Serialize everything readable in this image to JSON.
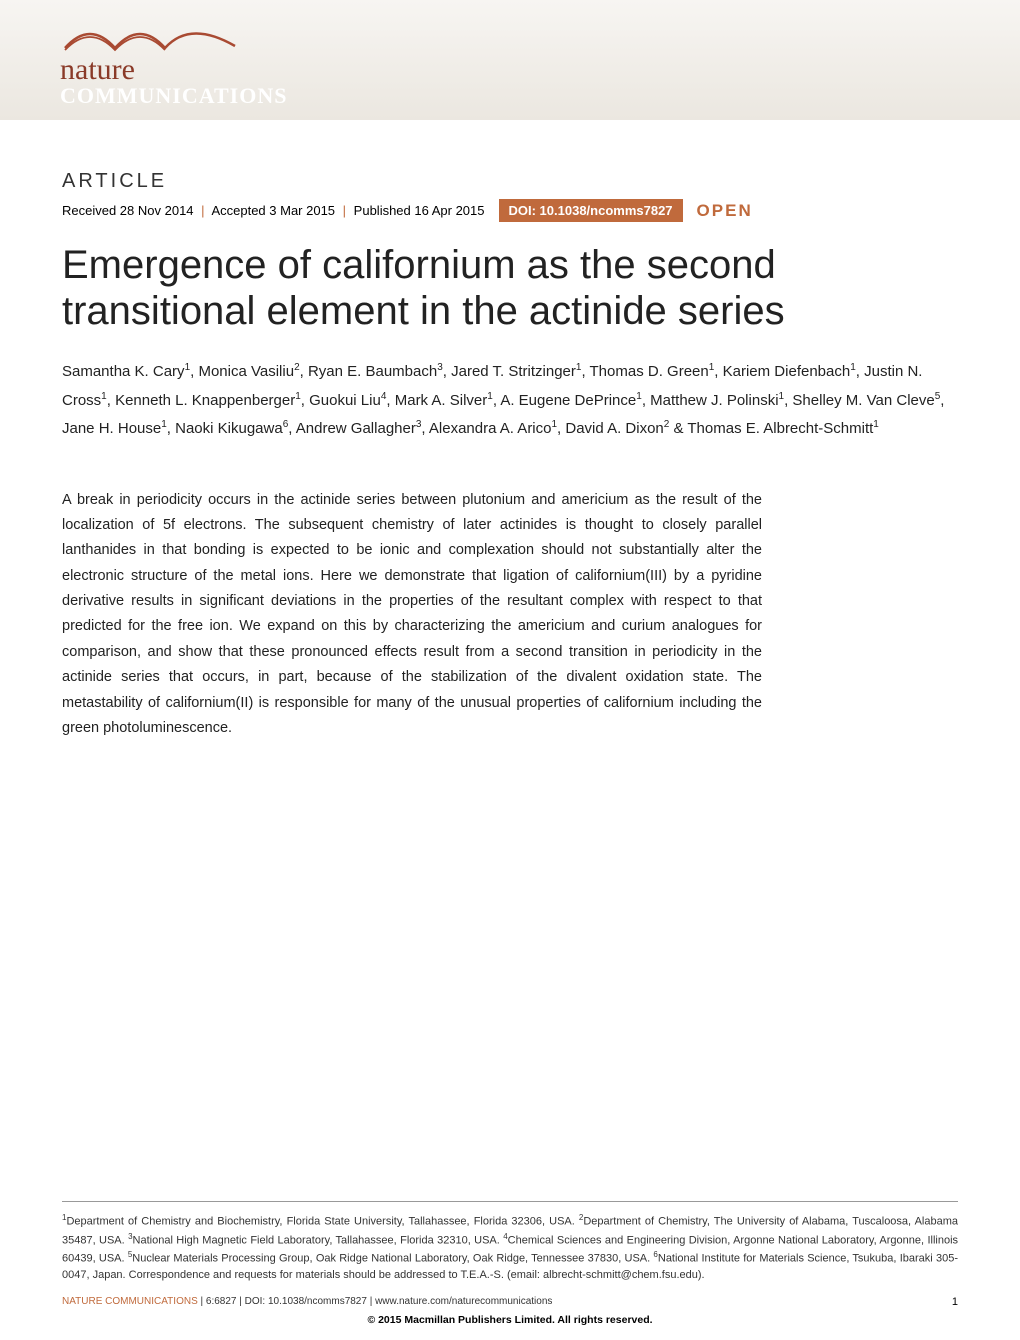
{
  "banner": {
    "logo_top": "nature",
    "logo_bottom": "COMMUNICATIONS",
    "bg_gradient_top": "#f7f5f2",
    "bg_gradient_bottom": "#ebe7e0",
    "accent_color": "#a94a32"
  },
  "article": {
    "label": "ARTICLE",
    "received": "Received 28 Nov 2014",
    "accepted": "Accepted 3 Mar 2015",
    "published": "Published 16 Apr 2015",
    "doi": "DOI: 10.1038/ncomms7827",
    "open": "OPEN",
    "title": "Emergence of californium as the second transitional element in the actinide series"
  },
  "authors_html": "Samantha K. Cary<sup>1</sup>, Monica Vasiliu<sup>2</sup>, Ryan E. Baumbach<sup>3</sup>, Jared T. Stritzinger<sup>1</sup>, Thomas D. Green<sup>1</sup>, Kariem Diefenbach<sup>1</sup>, Justin N. Cross<sup>1</sup>, Kenneth L. Knappenberger<sup>1</sup>, Guokui Liu<sup>4</sup>, Mark A. Silver<sup>1</sup>, A. Eugene DePrince<sup>1</sup>, Matthew J. Polinski<sup>1</sup>, Shelley M. Van Cleve<sup>5</sup>, Jane H. House<sup>1</sup>, Naoki Kikugawa<sup>6</sup>, Andrew Gallagher<sup>3</sup>, Alexandra A. Arico<sup>1</sup>, David A. Dixon<sup>2</sup> & Thomas E. Albrecht-Schmitt<sup>1</sup>",
  "abstract": "A break in periodicity occurs in the actinide series between plutonium and americium as the result of the localization of 5f electrons. The subsequent chemistry of later actinides is thought to closely parallel lanthanides in that bonding is expected to be ionic and complexation should not substantially alter the electronic structure of the metal ions. Here we demonstrate that ligation of californium(III) by a pyridine derivative results in significant deviations in the properties of the resultant complex with respect to that predicted for the free ion. We expand on this by characterizing the americium and curium analogues for comparison, and show that these pronounced effects result from a second transition in periodicity in the actinide series that occurs, in part, because of the stabilization of the divalent oxidation state. The metastability of californium(II) is responsible for many of the unusual properties of californium including the green photoluminescence.",
  "affiliations_html": "<sup>1</sup>Department of Chemistry and Biochemistry, Florida State University, Tallahassee, Florida 32306, USA. <sup>2</sup>Department of Chemistry, The University of Alabama, Tuscaloosa, Alabama 35487, USA. <sup>3</sup>National High Magnetic Field Laboratory, Tallahassee, Florida 32310, USA. <sup>4</sup>Chemical Sciences and Engineering Division, Argonne National Laboratory, Argonne, Illinois 60439, USA. <sup>5</sup>Nuclear Materials Processing Group, Oak Ridge National Laboratory, Oak Ridge, Tennessee 37830, USA. <sup>6</sup>National Institute for Materials Science, Tsukuba, Ibaraki 305-0047, Japan. Correspondence and requests for materials should be addressed to T.E.A.-S. (email: albrecht-schmitt@chem.fsu.edu).",
  "footer": {
    "publication": "NATURE COMMUNICATIONS",
    "citation": " | 6:6827 | DOI: 10.1038/ncomms7827 | www.nature.com/naturecommunications",
    "page": "1",
    "copyright": "© 2015 Macmillan Publishers Limited. All rights reserved."
  },
  "colors": {
    "accent": "#c06a3c",
    "text": "#222222",
    "rule": "#999999"
  }
}
